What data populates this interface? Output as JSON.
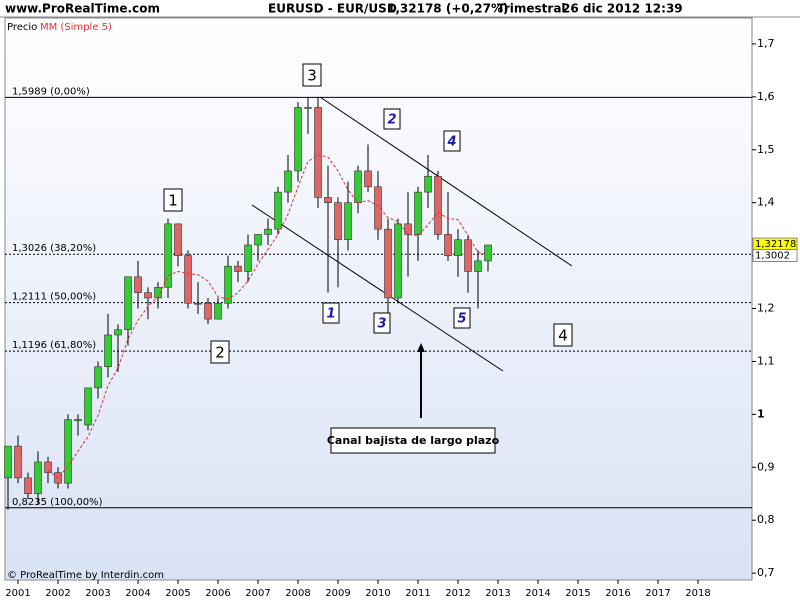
{
  "chart_data": {
    "type": "candlestick",
    "site": "www.ProRealTime.com",
    "instrument": "EURUSD - EUR/USD",
    "quote": "1,32178 (+0,27%)",
    "period": "Trimestral",
    "datetime": "26 dic 2012 12:39",
    "price_label": "Precio",
    "footer": "© ProRealTime by Interdin.com",
    "up_color": "#33cc33",
    "down_color": "#e06666",
    "x": [
      2000.75,
      2001,
      2001.25,
      2001.5,
      2001.75,
      2002,
      2002.25,
      2002.5,
      2002.75,
      2003,
      2003.25,
      2003.5,
      2003.75,
      2004,
      2004.25,
      2004.5,
      2004.75,
      2005,
      2005.25,
      2005.5,
      2005.75,
      2006,
      2006.25,
      2006.5,
      2006.75,
      2007,
      2007.25,
      2007.5,
      2007.75,
      2008,
      2008.25,
      2008.5,
      2008.75,
      2009,
      2009.25,
      2009.5,
      2009.75,
      2010,
      2010.25,
      2010.5,
      2010.75,
      2011,
      2011.25,
      2011.5,
      2011.75,
      2012,
      2012.25,
      2012.5,
      2012.75
    ],
    "open": [
      0.88,
      0.94,
      0.88,
      0.85,
      0.91,
      0.89,
      0.87,
      0.99,
      0.98,
      1.05,
      1.09,
      1.15,
      1.16,
      1.26,
      1.23,
      1.22,
      1.24,
      1.36,
      1.3,
      1.21,
      1.21,
      1.18,
      1.21,
      1.28,
      1.27,
      1.32,
      1.34,
      1.35,
      1.42,
      1.46,
      1.58,
      1.58,
      1.41,
      1.4,
      1.33,
      1.4,
      1.46,
      1.43,
      1.35,
      1.22,
      1.36,
      1.34,
      1.42,
      1.45,
      1.34,
      1.3,
      1.33,
      1.27,
      1.29
    ],
    "high": [
      0.94,
      0.96,
      0.89,
      0.93,
      0.92,
      0.9,
      1.0,
      1.0,
      1.05,
      1.1,
      1.19,
      1.17,
      1.26,
      1.29,
      1.24,
      1.25,
      1.37,
      1.36,
      1.31,
      1.25,
      1.22,
      1.22,
      1.3,
      1.29,
      1.34,
      1.34,
      1.37,
      1.43,
      1.49,
      1.59,
      1.6,
      1.6,
      1.47,
      1.41,
      1.44,
      1.47,
      1.51,
      1.46,
      1.37,
      1.37,
      1.42,
      1.43,
      1.49,
      1.46,
      1.42,
      1.35,
      1.34,
      1.31,
      1.32
    ],
    "low": [
      0.82,
      0.87,
      0.84,
      0.83,
      0.87,
      0.86,
      0.86,
      0.96,
      0.97,
      1.03,
      1.07,
      1.08,
      1.13,
      1.2,
      1.18,
      1.2,
      1.22,
      1.28,
      1.2,
      1.19,
      1.17,
      1.18,
      1.2,
      1.25,
      1.25,
      1.29,
      1.32,
      1.34,
      1.4,
      1.44,
      1.53,
      1.39,
      1.23,
      1.24,
      1.31,
      1.38,
      1.42,
      1.33,
      1.19,
      1.21,
      1.26,
      1.29,
      1.39,
      1.33,
      1.29,
      1.26,
      1.23,
      1.2,
      1.27
    ],
    "close": [
      0.94,
      0.88,
      0.85,
      0.91,
      0.89,
      0.87,
      0.99,
      0.99,
      1.05,
      1.09,
      1.15,
      1.16,
      1.26,
      1.23,
      1.22,
      1.24,
      1.36,
      1.3,
      1.21,
      1.21,
      1.18,
      1.21,
      1.28,
      1.27,
      1.32,
      1.34,
      1.35,
      1.42,
      1.46,
      1.58,
      1.58,
      1.41,
      1.4,
      1.33,
      1.4,
      1.46,
      1.43,
      1.35,
      1.22,
      1.36,
      1.34,
      1.42,
      1.45,
      1.34,
      1.3,
      1.33,
      1.27,
      1.29,
      1.32
    ],
    "ma": {
      "name": "MM (Simple 5)",
      "color": "#e03030",
      "values": [
        null,
        null,
        null,
        null,
        0.894,
        0.88,
        0.902,
        0.93,
        0.958,
        0.998,
        1.054,
        1.088,
        1.142,
        1.178,
        1.204,
        1.222,
        1.262,
        1.27,
        1.266,
        1.264,
        1.252,
        1.222,
        1.218,
        1.23,
        1.252,
        1.284,
        1.312,
        1.34,
        1.378,
        1.43,
        1.478,
        1.49,
        1.486,
        1.46,
        1.424,
        1.4,
        1.404,
        1.394,
        1.372,
        1.364,
        1.34,
        1.338,
        1.358,
        1.382,
        1.37,
        1.368,
        1.338,
        1.306,
        1.302
      ]
    },
    "xlim": [
      2000.675,
      2019.35
    ],
    "ylim": [
      0.687,
      1.749
    ],
    "xticks": [
      2001,
      2002,
      2003,
      2004,
      2005,
      2006,
      2007,
      2008,
      2009,
      2010,
      2011,
      2012,
      2013,
      2014,
      2015,
      2016,
      2017,
      2018
    ],
    "yticks": [
      {
        "value": 0.7,
        "label": "0,7"
      },
      {
        "value": 0.8,
        "label": "0,8"
      },
      {
        "value": 0.9,
        "label": "0,9"
      },
      1,
      {
        "value": 1.1,
        "label": "1,1"
      },
      {
        "value": 1.2,
        "label": "1,2"
      },
      {
        "value": 1.3,
        "label": "1,3"
      },
      {
        "value": 1.4,
        "label": "1,4"
      },
      {
        "value": 1.5,
        "label": "1,5"
      },
      {
        "value": 1.6,
        "label": "1,6"
      },
      {
        "value": 1.7,
        "label": "1,7"
      }
    ],
    "levels": [
      {
        "value": 1.5989,
        "label": "1,5989 (0,00%)",
        "style": "solid"
      },
      {
        "value": 1.3026,
        "label": "1,3026 (38,20%)",
        "style": "dotted"
      },
      {
        "value": 1.2111,
        "label": "1,2111 (50,00%)",
        "style": "dotted"
      },
      {
        "value": 1.1196,
        "label": "1,1196 (61,80%)",
        "style": "dotted"
      },
      {
        "value": 0.8235,
        "label": "0,8235 (100,00%)",
        "style": "solid"
      }
    ],
    "price_tags": [
      {
        "value": 1.32178,
        "label": "1,32178",
        "color": "#ffff00"
      },
      {
        "value": 1.3002,
        "label": "1,3002",
        "color": "#ffffff"
      }
    ],
    "boxed_labels": [
      "1",
      "2",
      "3",
      "4"
    ],
    "wave_labels": [
      "1",
      "2",
      "3",
      "4",
      "5"
    ],
    "note": "Canal bajista de largo plazo"
  }
}
